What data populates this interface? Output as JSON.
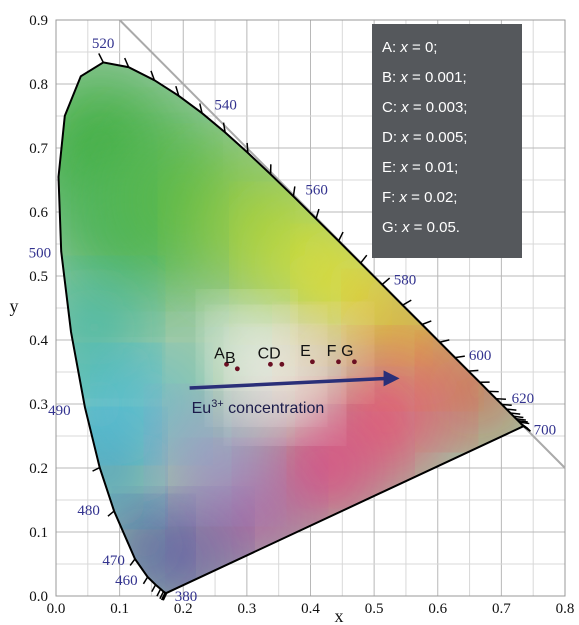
{
  "chart_data": {
    "type": "scatter",
    "title": "",
    "xlabel": "x",
    "ylabel": "y",
    "xlim": [
      0.0,
      0.8
    ],
    "ylim": [
      0.0,
      0.9
    ],
    "grid": true,
    "x_ticks": [
      "0.0",
      "0.1",
      "0.2",
      "0.3",
      "0.4",
      "0.5",
      "0.6",
      "0.7",
      "0.8"
    ],
    "y_ticks": [
      "0.0",
      "0.1",
      "0.2",
      "0.3",
      "0.4",
      "0.5",
      "0.6",
      "0.7",
      "0.8",
      "0.9"
    ],
    "locus_labels": [
      {
        "text": "380",
        "x": 0.174,
        "y": 0.005
      },
      {
        "text": "460",
        "x": 0.144,
        "y": 0.03
      },
      {
        "text": "470",
        "x": 0.124,
        "y": 0.058
      },
      {
        "text": "480",
        "x": 0.091,
        "y": 0.133
      },
      {
        "text": "490",
        "x": 0.045,
        "y": 0.295
      },
      {
        "text": "500",
        "x": 0.008,
        "y": 0.538
      },
      {
        "text": "520",
        "x": 0.074,
        "y": 0.834
      },
      {
        "text": "540",
        "x": 0.23,
        "y": 0.754
      },
      {
        "text": "560",
        "x": 0.373,
        "y": 0.624
      },
      {
        "text": "580",
        "x": 0.512,
        "y": 0.487
      },
      {
        "text": "600",
        "x": 0.627,
        "y": 0.372
      },
      {
        "text": "620",
        "x": 0.691,
        "y": 0.308
      },
      {
        "text": "700",
        "x": 0.735,
        "y": 0.265
      }
    ],
    "points": [
      {
        "label": "A",
        "x": 0.268,
        "y": 0.362
      },
      {
        "label": "B",
        "x": 0.285,
        "y": 0.355
      },
      {
        "label": "C",
        "x": 0.337,
        "y": 0.362
      },
      {
        "label": "D",
        "x": 0.355,
        "y": 0.362
      },
      {
        "label": "E",
        "x": 0.403,
        "y": 0.366
      },
      {
        "label": "F",
        "x": 0.444,
        "y": 0.366
      },
      {
        "label": "G",
        "x": 0.469,
        "y": 0.366
      }
    ],
    "legend": {
      "placement": "top-right",
      "entries": [
        {
          "letter": "A:",
          "value": "0;"
        },
        {
          "letter": "B:",
          "value": "0.001;"
        },
        {
          "letter": "C:",
          "value": "0.003;"
        },
        {
          "letter": "D:",
          "value": "0.005;"
        },
        {
          "letter": "E:",
          "value": "0.01;"
        },
        {
          "letter": "F:",
          "value": "0.02;"
        },
        {
          "letter": "G:",
          "value": "0.05."
        }
      ],
      "variable": "x",
      "background": "#55585c"
    },
    "arrow_annotation": {
      "text_base": "Eu",
      "text_sup": "3+",
      "text_rest": " concentration",
      "from": [
        0.21,
        0.325
      ],
      "to": [
        0.54,
        0.34
      ],
      "color": "#2a2f78"
    },
    "planckian_bound_line": {
      "from": [
        0.1,
        0.9
      ],
      "to": [
        0.8,
        0.2
      ]
    }
  }
}
